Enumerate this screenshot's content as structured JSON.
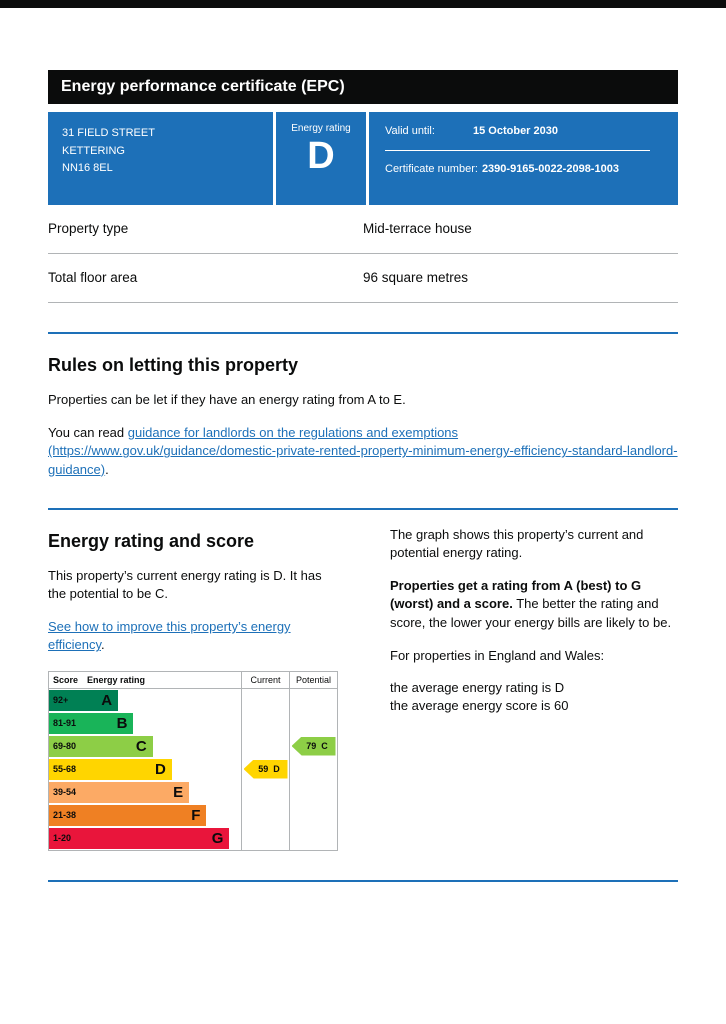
{
  "colors": {
    "brand-blue": "#1d70b8",
    "ink": "#0b0c0c",
    "border-gray": "#b1b4b6",
    "link-blue": "#1d70b8"
  },
  "header": {
    "title": "Energy performance certificate (EPC)"
  },
  "summary": {
    "address_line1": "31 FIELD STREET",
    "address_line2": "KETTERING",
    "address_line3": "NN16 8EL",
    "energy_rating_label": "Energy rating",
    "energy_rating_letter": "D",
    "valid_until_label": "Valid until:",
    "valid_until_date": "15 October 2030",
    "certificate_number_label": "Certificate number:",
    "certificate_number": "2390-9165-0022-2098-1003"
  },
  "property_details": {
    "rows": [
      {
        "label": "Property type",
        "value": "Mid-terrace house"
      },
      {
        "label": "Total floor area",
        "value": "96 square metres"
      }
    ]
  },
  "rules_section": {
    "heading": "Rules on letting this property",
    "paragraph1": "Properties can be let if they have an energy rating from A to E.",
    "paragraph2_prefix": "You can read ",
    "link_text": "guidance for landlords on the regulations and exemptions (https://www.gov.uk/guidance/domestic-private-rented-property-minimum-energy-efficiency-standard-landlord-guidance)",
    "paragraph2_suffix": "."
  },
  "rating_section": {
    "heading": "Energy rating and score",
    "paragraph1": "This property’s current energy rating is D. It has the potential to be C.",
    "improve_link_text": "See how to improve this property’s energy efficiency",
    "improve_link_suffix": ".",
    "right_column": {
      "paragraph1": "The graph shows this property’s current and potential energy rating.",
      "paragraph2_bold": "Properties get a rating from A (best) to G (worst) and a score.",
      "paragraph2_rest": " The better the rating and score, the lower your energy bills are likely to be.",
      "paragraph3": "For properties in England and Wales:",
      "average_rating_line": "the average energy rating is D",
      "average_score_line": "the average energy score is 60"
    }
  },
  "chart_data": {
    "type": "table",
    "subtype": "epc-rating-chart",
    "columns": [
      "Score",
      "Energy rating",
      "Current",
      "Potential"
    ],
    "bands": [
      {
        "score_range": "92+",
        "letter": "A",
        "color": "#008054",
        "bar_pct": 36
      },
      {
        "score_range": "81-91",
        "letter": "B",
        "color": "#19b459",
        "bar_pct": 44
      },
      {
        "score_range": "69-80",
        "letter": "C",
        "color": "#8dce46",
        "bar_pct": 54
      },
      {
        "score_range": "55-68",
        "letter": "D",
        "color": "#ffd500",
        "bar_pct": 64
      },
      {
        "score_range": "39-54",
        "letter": "E",
        "color": "#fcaa65",
        "bar_pct": 73
      },
      {
        "score_range": "21-38",
        "letter": "F",
        "color": "#ef8023",
        "bar_pct": 82
      },
      {
        "score_range": "1-20",
        "letter": "G",
        "color": "#e9153b",
        "bar_pct": 94
      }
    ],
    "current": {
      "score": 59,
      "letter": "D",
      "band_index": 3,
      "color": "#ffd500"
    },
    "potential": {
      "score": 79,
      "letter": "C",
      "band_index": 2,
      "color": "#8dce46"
    }
  }
}
